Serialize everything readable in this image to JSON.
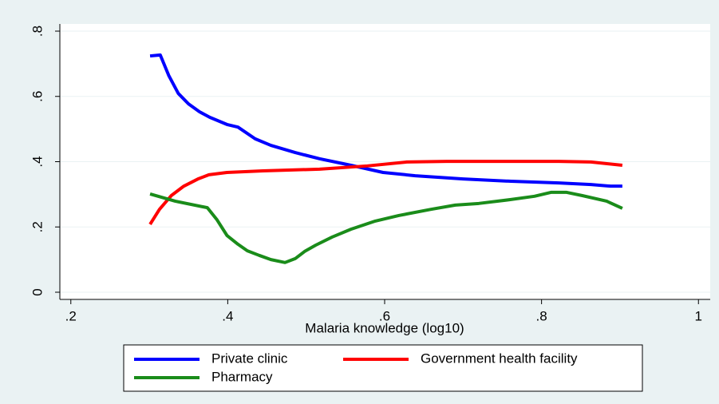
{
  "chart_data": {
    "type": "line",
    "x_label": "Malaria knowledge (log10)",
    "xlim": [
      0.186,
      1.015
    ],
    "ylim": [
      -0.022,
      0.822
    ],
    "xticks": [
      {
        "value": 0.2,
        "label": ".2"
      },
      {
        "value": 0.4,
        "label": ".4"
      },
      {
        "value": 0.6,
        "label": ".6"
      },
      {
        "value": 0.8,
        "label": ".8"
      },
      1
    ],
    "yticks": [
      0,
      {
        "value": 0.2,
        "label": ".2"
      },
      {
        "value": 0.4,
        "label": ".4"
      },
      {
        "value": 0.6,
        "label": ".6"
      },
      {
        "value": 0.8,
        "label": ".8"
      }
    ],
    "grid": true,
    "legend": "bottom",
    "series": [
      {
        "name": "Private clinic",
        "color": "#0000ff",
        "x": [
          0.301,
          0.314,
          0.325,
          0.337,
          0.35,
          0.364,
          0.377,
          0.399,
          0.413,
          0.435,
          0.455,
          0.486,
          0.517,
          0.557,
          0.598,
          0.639,
          0.7,
          0.761,
          0.822,
          0.863,
          0.888,
          0.903
        ],
        "values": [
          0.724,
          0.727,
          0.663,
          0.609,
          0.577,
          0.553,
          0.536,
          0.514,
          0.506,
          0.47,
          0.45,
          0.428,
          0.409,
          0.389,
          0.367,
          0.357,
          0.347,
          0.34,
          0.335,
          0.33,
          0.325,
          0.325
        ]
      },
      {
        "name": "Government health facility",
        "color": "#ff0000",
        "x": [
          0.301,
          0.313,
          0.328,
          0.344,
          0.362,
          0.376,
          0.399,
          0.445,
          0.517,
          0.578,
          0.628,
          0.679,
          0.822,
          0.863,
          0.903
        ],
        "values": [
          0.208,
          0.254,
          0.296,
          0.325,
          0.347,
          0.36,
          0.367,
          0.372,
          0.377,
          0.387,
          0.399,
          0.401,
          0.401,
          0.399,
          0.389
        ]
      },
      {
        "name": "Pharmacy",
        "color": "#1a8c1a",
        "x": [
          0.301,
          0.333,
          0.374,
          0.386,
          0.399,
          0.413,
          0.425,
          0.44,
          0.455,
          0.473,
          0.486,
          0.498,
          0.512,
          0.533,
          0.557,
          0.588,
          0.618,
          0.659,
          0.69,
          0.72,
          0.761,
          0.791,
          0.812,
          0.832,
          0.852,
          0.883,
          0.903
        ],
        "values": [
          0.301,
          0.279,
          0.259,
          0.223,
          0.174,
          0.147,
          0.127,
          0.113,
          0.1,
          0.091,
          0.103,
          0.125,
          0.144,
          0.169,
          0.193,
          0.218,
          0.235,
          0.254,
          0.267,
          0.272,
          0.284,
          0.294,
          0.306,
          0.306,
          0.296,
          0.279,
          0.257
        ]
      }
    ]
  }
}
